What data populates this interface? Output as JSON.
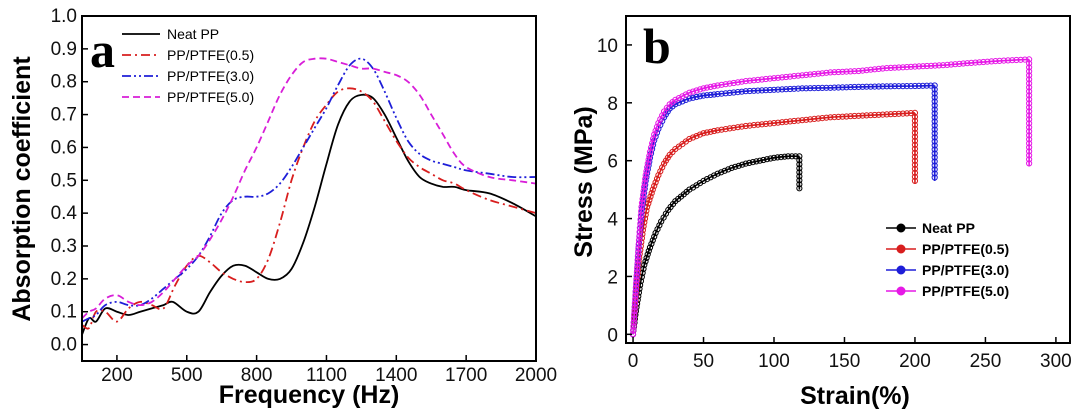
{
  "chart_data": [
    {
      "panel": "a",
      "type": "line",
      "xlabel": "Frequency (Hz)",
      "ylabel": "Absorption coefficient",
      "xlim": [
        50,
        2000
      ],
      "ylim": [
        -0.05,
        1.0
      ],
      "xticks": [
        200,
        500,
        800,
        1100,
        1400,
        1700,
        2000
      ],
      "yticks": [
        0.0,
        0.1,
        0.2,
        0.3,
        0.4,
        0.5,
        0.6,
        0.7,
        0.8,
        0.9,
        1.0
      ],
      "legend_position": "top-left",
      "series": [
        {
          "name": "Neat PP",
          "color": "#000000",
          "dash": "solid",
          "x": [
            50,
            80,
            110,
            150,
            200,
            250,
            300,
            350,
            400,
            440,
            500,
            550,
            600,
            650,
            700,
            750,
            800,
            850,
            900,
            950,
            1000,
            1050,
            1100,
            1150,
            1200,
            1250,
            1300,
            1350,
            1400,
            1450,
            1500,
            1550,
            1600,
            1650,
            1700,
            1800,
            1900,
            2000
          ],
          "y": [
            0.03,
            0.08,
            0.07,
            0.11,
            0.1,
            0.09,
            0.1,
            0.11,
            0.12,
            0.13,
            0.1,
            0.1,
            0.16,
            0.21,
            0.24,
            0.24,
            0.22,
            0.2,
            0.2,
            0.23,
            0.31,
            0.42,
            0.55,
            0.67,
            0.74,
            0.76,
            0.75,
            0.7,
            0.63,
            0.56,
            0.51,
            0.49,
            0.48,
            0.48,
            0.47,
            0.46,
            0.43,
            0.39
          ]
        },
        {
          "name": "PP/PTFE(0.5)",
          "color": "#d81e1e",
          "dash": "dashdot",
          "x": [
            50,
            80,
            110,
            150,
            200,
            250,
            300,
            350,
            400,
            450,
            500,
            550,
            600,
            650,
            700,
            750,
            800,
            850,
            900,
            950,
            1000,
            1050,
            1100,
            1150,
            1200,
            1250,
            1300,
            1350,
            1400,
            1450,
            1500,
            1550,
            1600,
            1650,
            1700,
            1800,
            1900,
            2000
          ],
          "y": [
            0.06,
            0.05,
            0.1,
            0.1,
            0.07,
            0.11,
            0.13,
            0.12,
            0.11,
            0.18,
            0.24,
            0.27,
            0.25,
            0.22,
            0.2,
            0.19,
            0.2,
            0.26,
            0.37,
            0.5,
            0.6,
            0.68,
            0.73,
            0.77,
            0.78,
            0.77,
            0.74,
            0.68,
            0.62,
            0.57,
            0.54,
            0.52,
            0.5,
            0.49,
            0.47,
            0.44,
            0.42,
            0.4
          ]
        },
        {
          "name": "PP/PTFE(3.0)",
          "color": "#1e1ed8",
          "dash": "dashdotdot",
          "x": [
            50,
            80,
            110,
            150,
            200,
            250,
            300,
            350,
            400,
            450,
            500,
            550,
            600,
            650,
            700,
            750,
            800,
            850,
            900,
            950,
            1000,
            1050,
            1100,
            1150,
            1200,
            1250,
            1300,
            1350,
            1400,
            1450,
            1500,
            1550,
            1600,
            1650,
            1700,
            1800,
            1900,
            2000
          ],
          "y": [
            0.07,
            0.08,
            0.09,
            0.12,
            0.13,
            0.12,
            0.12,
            0.14,
            0.17,
            0.2,
            0.23,
            0.27,
            0.33,
            0.4,
            0.44,
            0.45,
            0.45,
            0.46,
            0.49,
            0.54,
            0.6,
            0.66,
            0.72,
            0.79,
            0.85,
            0.87,
            0.84,
            0.77,
            0.69,
            0.62,
            0.58,
            0.56,
            0.55,
            0.54,
            0.53,
            0.52,
            0.51,
            0.51
          ]
        },
        {
          "name": "PP/PTFE(5.0)",
          "color": "#d81ed8",
          "dash": "dashed",
          "x": [
            50,
            80,
            110,
            150,
            200,
            250,
            300,
            350,
            400,
            450,
            500,
            550,
            600,
            650,
            700,
            750,
            800,
            850,
            900,
            950,
            1000,
            1050,
            1100,
            1150,
            1200,
            1250,
            1300,
            1350,
            1400,
            1450,
            1500,
            1550,
            1600,
            1650,
            1700,
            1800,
            1900,
            2000
          ],
          "y": [
            0.08,
            0.1,
            0.11,
            0.14,
            0.15,
            0.13,
            0.12,
            0.13,
            0.16,
            0.2,
            0.24,
            0.27,
            0.32,
            0.38,
            0.45,
            0.53,
            0.6,
            0.68,
            0.76,
            0.82,
            0.86,
            0.87,
            0.87,
            0.86,
            0.85,
            0.84,
            0.84,
            0.83,
            0.82,
            0.8,
            0.76,
            0.7,
            0.64,
            0.58,
            0.54,
            0.51,
            0.5,
            0.49
          ]
        }
      ]
    },
    {
      "panel": "b",
      "type": "scatter",
      "xlabel": "Strain(%)",
      "ylabel": "Stress (MPa)",
      "xlim": [
        -5,
        310
      ],
      "ylim": [
        -0.3,
        11
      ],
      "xticks": [
        0,
        50,
        100,
        150,
        200,
        250,
        300
      ],
      "yticks": [
        0,
        2,
        4,
        6,
        8,
        10
      ],
      "legend_position": "bottom-right",
      "series": [
        {
          "name": "Neat PP",
          "color": "#000000",
          "strain_at_break": 118,
          "stress_min": 5.0,
          "x": [
            0,
            2,
            5,
            8,
            12,
            16,
            20,
            25,
            30,
            40,
            50,
            60,
            70,
            80,
            90,
            100,
            110,
            118
          ],
          "y": [
            0,
            0.8,
            1.7,
            2.4,
            3.0,
            3.5,
            3.9,
            4.3,
            4.6,
            5.0,
            5.3,
            5.55,
            5.75,
            5.9,
            6.0,
            6.1,
            6.15,
            6.15
          ]
        },
        {
          "name": "PP/PTFE(0.5)",
          "color": "#d81e1e",
          "strain_at_break": 200,
          "stress_min": 5.2,
          "x": [
            0,
            2,
            4,
            7,
            10,
            14,
            18,
            22,
            26,
            30,
            40,
            50,
            60,
            80,
            100,
            120,
            140,
            160,
            180,
            200
          ],
          "y": [
            0,
            1.3,
            2.5,
            3.6,
            4.4,
            5.0,
            5.5,
            5.9,
            6.2,
            6.4,
            6.75,
            6.95,
            7.05,
            7.2,
            7.3,
            7.4,
            7.5,
            7.55,
            7.6,
            7.65
          ]
        },
        {
          "name": "PP/PTFE(3.0)",
          "color": "#1e1ed8",
          "strain_at_break": 214,
          "stress_min": 5.3,
          "x": [
            0,
            2,
            4,
            6,
            9,
            12,
            15,
            18,
            22,
            26,
            30,
            40,
            50,
            60,
            80,
            100,
            120,
            140,
            160,
            180,
            200,
            214
          ],
          "y": [
            0,
            1.5,
            3.0,
            4.2,
            5.3,
            6.1,
            6.7,
            7.1,
            7.5,
            7.8,
            7.95,
            8.15,
            8.25,
            8.3,
            8.4,
            8.45,
            8.5,
            8.52,
            8.55,
            8.57,
            8.58,
            8.6
          ]
        },
        {
          "name": "PP/PTFE(5.0)",
          "color": "#e619e6",
          "strain_at_break": 281,
          "stress_min": 5.8,
          "x": [
            0,
            2,
            4,
            6,
            9,
            12,
            15,
            18,
            22,
            26,
            30,
            40,
            50,
            60,
            80,
            100,
            120,
            140,
            160,
            180,
            200,
            220,
            240,
            260,
            281
          ],
          "y": [
            0,
            1.6,
            3.1,
            4.4,
            5.5,
            6.3,
            6.9,
            7.3,
            7.7,
            7.95,
            8.1,
            8.35,
            8.5,
            8.6,
            8.75,
            8.85,
            8.95,
            9.05,
            9.1,
            9.2,
            9.25,
            9.3,
            9.38,
            9.45,
            9.5
          ]
        }
      ]
    }
  ]
}
